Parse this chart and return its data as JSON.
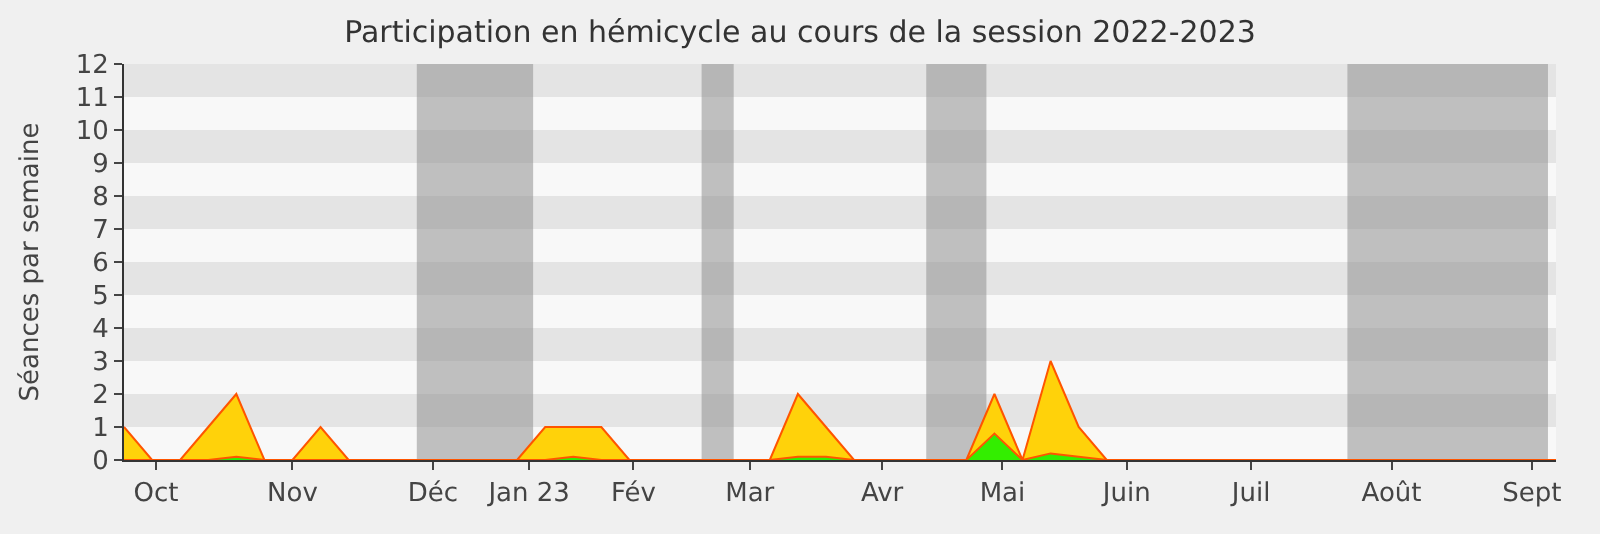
{
  "chart_data": {
    "type": "area",
    "title": "Participation en hémicycle au cours de la session 2022-2023",
    "ylabel": "Séances par semaine",
    "x": [
      "2022-09-26",
      "2022-10-03",
      "2022-10-10",
      "2022-10-17",
      "2022-10-24",
      "2022-10-31",
      "2022-11-07",
      "2022-11-14",
      "2022-11-21",
      "2022-11-28",
      "2022-12-05",
      "2022-12-12",
      "2022-12-19",
      "2022-12-26",
      "2023-01-02",
      "2023-01-09",
      "2023-01-16",
      "2023-01-23",
      "2023-01-30",
      "2023-02-06",
      "2023-02-13",
      "2023-02-20",
      "2023-02-27",
      "2023-03-06",
      "2023-03-13",
      "2023-03-20",
      "2023-03-27",
      "2023-04-03",
      "2023-04-10",
      "2023-04-17",
      "2023-04-24",
      "2023-05-01",
      "2023-05-08",
      "2023-05-15",
      "2023-05-22",
      "2023-05-29",
      "2023-06-05",
      "2023-06-12",
      "2023-06-19",
      "2023-06-26",
      "2023-07-03",
      "2023-07-10",
      "2023-07-17",
      "2023-07-24",
      "2023-07-31",
      "2023-08-07",
      "2023-08-14",
      "2023-08-21",
      "2023-08-28",
      "2023-09-04",
      "2023-09-11",
      "2023-09-18"
    ],
    "series": [
      {
        "color": "#ffd20a",
        "values": [
          1,
          0,
          0,
          1,
          2,
          0,
          0,
          1,
          0,
          0,
          0,
          0,
          0,
          0,
          0,
          1,
          1,
          1,
          0,
          0,
          0,
          0,
          0,
          0,
          2,
          1,
          0,
          0,
          0,
          0,
          0,
          2,
          0,
          3,
          1,
          0,
          0,
          0,
          0,
          0,
          0,
          0,
          0,
          0,
          0,
          0,
          0,
          0,
          0,
          0,
          0,
          0
        ]
      },
      {
        "color": "#33ee00",
        "values": [
          0,
          0,
          0,
          0,
          0.1,
          0,
          0,
          0,
          0,
          0,
          0,
          0,
          0,
          0,
          0,
          0,
          0.1,
          0,
          0,
          0,
          0,
          0,
          0,
          0,
          0.1,
          0.1,
          0,
          0,
          0,
          0,
          0,
          0.8,
          0,
          0.2,
          0.1,
          0,
          0,
          0,
          0,
          0,
          0,
          0,
          0,
          0,
          0,
          0,
          0,
          0,
          0,
          0,
          0,
          0
        ]
      }
    ],
    "xlim": [
      "2022-09-26",
      "2023-09-18"
    ],
    "ylim": [
      0,
      12
    ],
    "yticks": [
      0,
      1,
      2,
      3,
      4,
      5,
      6,
      7,
      8,
      9,
      10,
      11,
      12
    ],
    "xticks": [
      {
        "value": "2022-10-04",
        "label": "Oct"
      },
      {
        "value": "2022-11-07",
        "label": "Nov"
      },
      {
        "value": "2022-12-12",
        "label": "Déc"
      },
      {
        "value": "2023-01-05",
        "label": "Jan 23"
      },
      {
        "value": "2023-01-31",
        "label": "Fév"
      },
      {
        "value": "2023-03-01",
        "label": "Mar"
      },
      {
        "value": "2023-04-03",
        "label": "Avr"
      },
      {
        "value": "2023-05-03",
        "label": "Mai"
      },
      {
        "value": "2023-06-03",
        "label": "Juin"
      },
      {
        "value": "2023-07-04",
        "label": "Juil"
      },
      {
        "value": "2023-08-08",
        "label": "Août"
      },
      {
        "value": "2023-09-12",
        "label": "Sept"
      }
    ],
    "bands": [
      {
        "axis": "x",
        "from": "2022-12-08",
        "to": "2023-01-06",
        "color": "#909090"
      },
      {
        "axis": "x",
        "from": "2023-02-17",
        "to": "2023-02-25",
        "color": "#909090"
      },
      {
        "axis": "x",
        "from": "2023-04-14",
        "to": "2023-04-29",
        "color": "#909090"
      },
      {
        "axis": "x",
        "from": "2023-07-28",
        "to": "2023-09-16",
        "color": "#909090"
      }
    ]
  }
}
